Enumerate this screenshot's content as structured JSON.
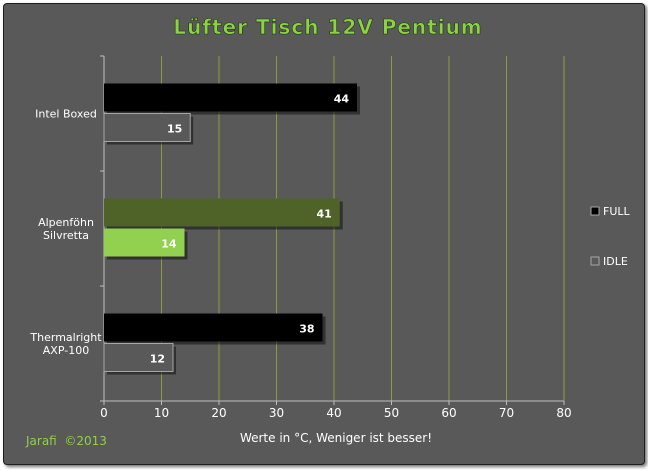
{
  "chart_data": {
    "type": "bar",
    "orientation": "horizontal",
    "title": "Lüfter Tisch 12V Pentium",
    "xlabel": "Werte in °C, Weniger ist besser!",
    "ylabel": "",
    "xlim": [
      0,
      80
    ],
    "xticks": [
      0,
      10,
      20,
      30,
      40,
      50,
      60,
      70,
      80
    ],
    "grid": "vertical",
    "legend_position": "right",
    "categories": [
      "Intel Boxed",
      "Alpenföhn Silvretta",
      "Thermalright AXP-100"
    ],
    "category_lines": [
      [
        "Intel Boxed"
      ],
      [
        "Alpenföhn",
        "Silvretta"
      ],
      [
        "Thermalright",
        "AXP-100"
      ]
    ],
    "series": [
      {
        "name": "FULL",
        "values": [
          44,
          41,
          38
        ]
      },
      {
        "name": "IDLE",
        "values": [
          15,
          14,
          12
        ]
      }
    ],
    "highlight_category": 1,
    "footer": "Jarafi  ©2013"
  },
  "colors": {
    "background": "#595959",
    "grid": "#8f9a3c",
    "axis": "#bfbfbf",
    "text": "#ffffff",
    "title": "#8dd14a",
    "footer": "#8dd14a",
    "full": "#000000",
    "idle": "#595959",
    "full_highlight": "#4f6228",
    "idle_highlight": "#92d050",
    "bar_border": "#a6a6a6"
  }
}
